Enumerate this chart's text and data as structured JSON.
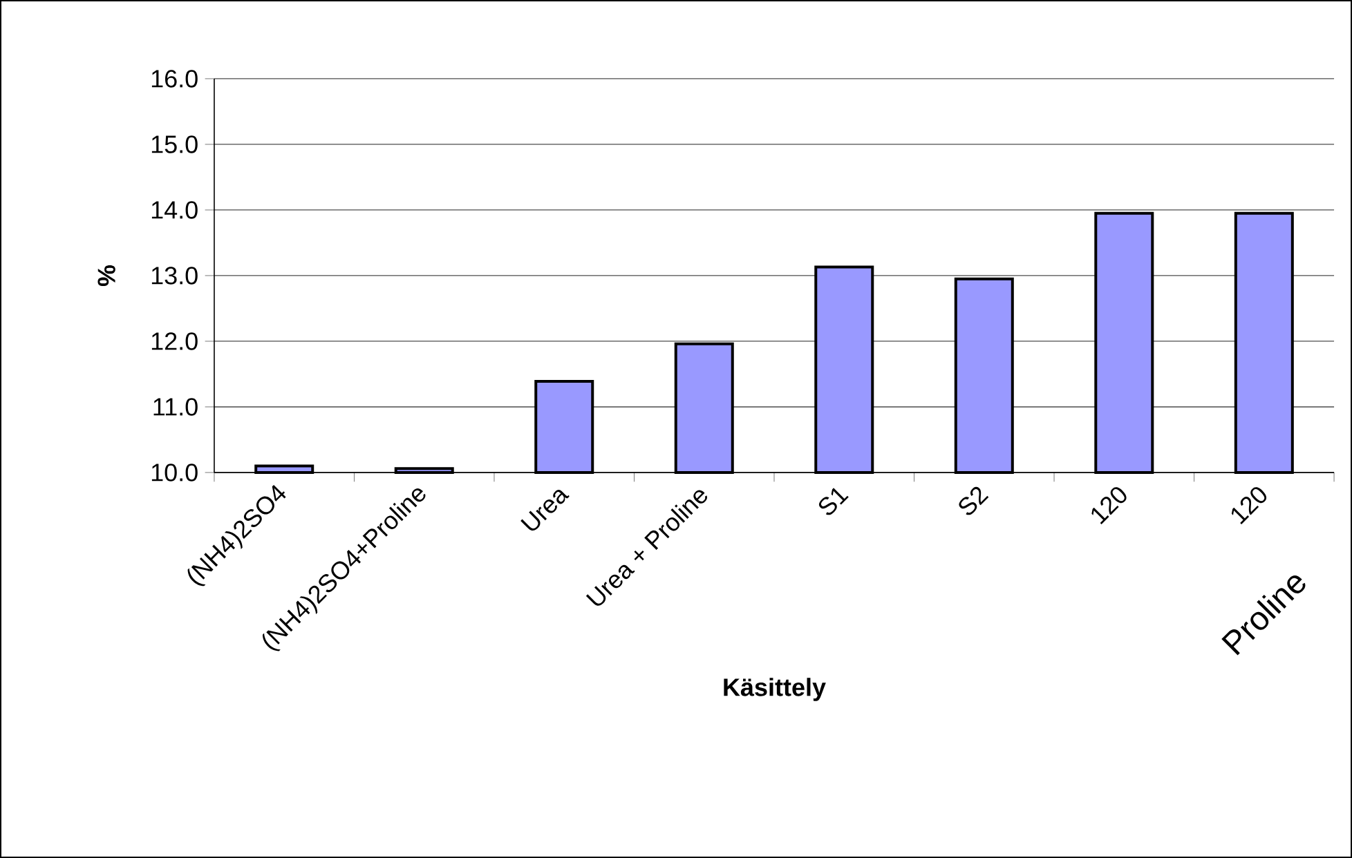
{
  "chart_data": {
    "type": "bar",
    "xlabel": "Käsittely",
    "ylabel": "%",
    "categories": [
      "(NH4)2SO4",
      "(NH4)2SO4+Proline",
      "Urea",
      "Urea + Proline",
      "S1",
      "S2",
      "120",
      "120"
    ],
    "values": [
      10.1,
      10.06,
      11.39,
      11.96,
      13.13,
      12.95,
      13.95,
      13.95
    ],
    "color": "#9999ff",
    "ylim": [
      10,
      16
    ],
    "yticks": [
      {
        "value": 10,
        "label": "10.0"
      },
      {
        "value": 11,
        "label": "11.0"
      },
      {
        "value": 12,
        "label": "12.0"
      },
      {
        "value": 13,
        "label": "13.0"
      },
      {
        "value": 14,
        "label": "14.0"
      },
      {
        "value": 15,
        "label": "15.0"
      },
      {
        "value": 16,
        "label": "16.0"
      }
    ],
    "grid": "y",
    "annotations": [
      "Proline"
    ]
  }
}
